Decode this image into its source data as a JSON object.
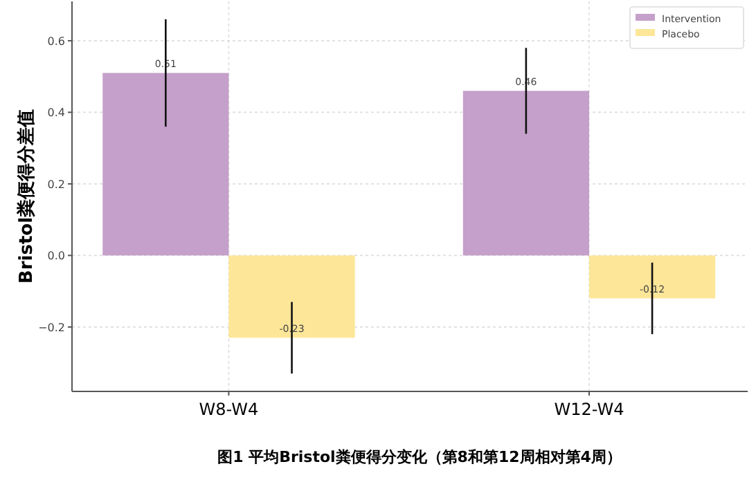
{
  "chart_data": {
    "type": "bar",
    "ylabel": "Bristol粪便得分差值",
    "categories": [
      "W8-W4",
      "W12-W4"
    ],
    "series": [
      {
        "name": "Intervention",
        "color": "#c5a0ca",
        "values": [
          0.51,
          0.46
        ],
        "errors": [
          [
            0.36,
            0.66
          ],
          [
            0.34,
            0.58
          ]
        ]
      },
      {
        "name": "Placebo",
        "color": "#fde698",
        "values": [
          -0.23,
          -0.12
        ],
        "errors": [
          [
            -0.33,
            -0.13
          ],
          [
            -0.22,
            -0.02
          ]
        ]
      }
    ],
    "ylim": [
      -0.38,
      0.71
    ],
    "yticks": [
      {
        "value": -0.2,
        "label": "−0.2"
      },
      {
        "value": 0,
        "label": "0.0"
      },
      {
        "value": 0.2,
        "label": "0.2"
      },
      {
        "value": 0.4,
        "label": "0.4"
      },
      {
        "value": 0.6,
        "label": "0.6"
      }
    ],
    "grid": true,
    "legend": "top right",
    "data_labels": true,
    "annotations": [
      "图1 平均Bristol粪便得分变化（第8和第12周相对第4周）"
    ]
  }
}
